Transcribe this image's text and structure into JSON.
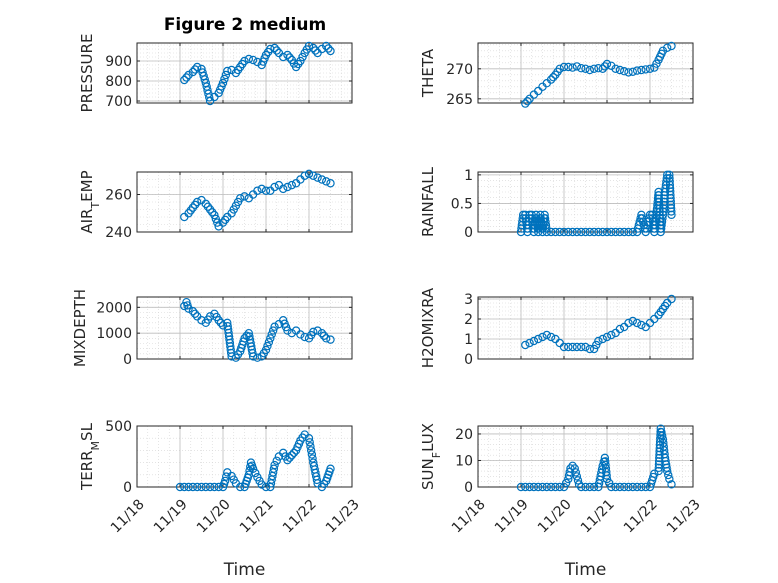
{
  "figure": {
    "title": "Figure 2 medium",
    "marker_color": "#0072BD",
    "x_ticks": [
      0,
      1,
      2,
      3,
      4,
      5
    ],
    "x_tick_labels": [
      "11/18",
      "11/19",
      "11/20",
      "11/21",
      "11/22",
      "11/23"
    ],
    "x_label": "Time"
  },
  "chart_data": [
    {
      "type": "scatter",
      "ylabel": "PRESSURE",
      "ylabel_sub": "",
      "ylabel_tail": "",
      "xlim": [
        0,
        5
      ],
      "ylim": [
        690,
        990
      ],
      "yticks": [
        700,
        800,
        900
      ],
      "grid": true,
      "show_x_tick_labels": false,
      "show_x_label": false,
      "x": [
        1.1,
        1.2,
        1.3,
        1.4,
        1.5,
        1.6,
        1.7,
        1.8,
        1.9,
        2.0,
        2.1,
        2.2,
        2.3,
        2.4,
        2.5,
        2.6,
        2.7,
        2.8,
        2.9,
        3.0,
        3.1,
        3.2,
        3.3,
        3.4,
        3.5,
        3.6,
        3.7,
        3.8,
        3.9,
        4.0,
        4.1,
        4.2,
        4.3,
        4.4,
        4.5
      ],
      "y": [
        805,
        830,
        845,
        870,
        860,
        790,
        700,
        720,
        740,
        790,
        850,
        855,
        840,
        870,
        900,
        910,
        905,
        895,
        880,
        930,
        960,
        965,
        940,
        920,
        930,
        905,
        870,
        900,
        940,
        975,
        965,
        940,
        960,
        975,
        950
      ]
    },
    {
      "type": "scatter",
      "ylabel": "THETA",
      "ylabel_sub": "",
      "ylabel_tail": "",
      "xlim": [
        0,
        5
      ],
      "ylim": [
        264.3,
        274.3
      ],
      "yticks": [
        265,
        270
      ],
      "grid": true,
      "show_x_tick_labels": false,
      "show_x_label": false,
      "x": [
        1.1,
        1.2,
        1.3,
        1.4,
        1.5,
        1.6,
        1.7,
        1.8,
        1.9,
        2.0,
        2.1,
        2.2,
        2.3,
        2.4,
        2.5,
        2.6,
        2.7,
        2.8,
        2.9,
        3.0,
        3.1,
        3.2,
        3.3,
        3.4,
        3.5,
        3.6,
        3.7,
        3.8,
        3.9,
        4.0,
        4.1,
        4.2,
        4.3,
        4.4,
        4.5
      ],
      "y": [
        264.2,
        265.0,
        265.7,
        266.3,
        267.0,
        267.6,
        268.2,
        269.0,
        270.0,
        270.3,
        270.3,
        270.2,
        270.4,
        270.1,
        270.0,
        269.8,
        270.0,
        270.1,
        270.0,
        270.8,
        270.5,
        270.0,
        269.8,
        269.6,
        269.4,
        269.5,
        269.7,
        269.8,
        269.9,
        270.0,
        270.2,
        271.5,
        273.0,
        273.5,
        273.8
      ]
    },
    {
      "type": "scatter",
      "ylabel": "AIR",
      "ylabel_sub": "T",
      "ylabel_tail": "EMP",
      "xlim": [
        0,
        5
      ],
      "ylim": [
        240,
        272
      ],
      "yticks": [
        240,
        260
      ],
      "grid": true,
      "show_x_tick_labels": false,
      "show_x_label": false,
      "x": [
        1.1,
        1.2,
        1.3,
        1.4,
        1.5,
        1.6,
        1.7,
        1.8,
        1.9,
        2.0,
        2.1,
        2.2,
        2.3,
        2.4,
        2.5,
        2.6,
        2.7,
        2.8,
        2.9,
        3.0,
        3.1,
        3.2,
        3.3,
        3.4,
        3.5,
        3.6,
        3.7,
        3.8,
        3.9,
        4.0,
        4.1,
        4.2,
        4.3,
        4.4,
        4.5
      ],
      "y": [
        248,
        250,
        253,
        256,
        257,
        255,
        252,
        249,
        243,
        245,
        248,
        250,
        254,
        258,
        259,
        258,
        260,
        262,
        263,
        262,
        262,
        264,
        265,
        263,
        264,
        265,
        266,
        268,
        270,
        271,
        270,
        269,
        268,
        267,
        266
      ]
    },
    {
      "type": "scatter",
      "ylabel": "RAINFALL",
      "ylabel_sub": "",
      "ylabel_tail": "",
      "xlim": [
        0,
        5
      ],
      "ylim": [
        0,
        1.05
      ],
      "yticks": [
        0,
        0.5,
        1
      ],
      "grid": true,
      "show_x_tick_labels": false,
      "show_x_label": false,
      "x": [
        1.0,
        1.05,
        1.1,
        1.15,
        1.2,
        1.25,
        1.3,
        1.35,
        1.4,
        1.45,
        1.5,
        1.55,
        1.6,
        1.7,
        1.8,
        1.9,
        2.0,
        2.1,
        2.2,
        2.3,
        2.4,
        2.5,
        2.6,
        2.7,
        2.8,
        2.9,
        3.0,
        3.1,
        3.2,
        3.3,
        3.4,
        3.5,
        3.6,
        3.7,
        3.8,
        3.9,
        4.0,
        4.05,
        4.1,
        4.15,
        4.2,
        4.25,
        4.3,
        4.35,
        4.4,
        4.45,
        4.5
      ],
      "y": [
        0,
        0.3,
        0.3,
        0,
        0.3,
        0.3,
        0,
        0.3,
        0,
        0.3,
        0,
        0.3,
        0,
        0,
        0,
        0,
        0,
        0,
        0,
        0,
        0,
        0,
        0,
        0,
        0,
        0,
        0,
        0,
        0,
        0,
        0,
        0,
        0,
        0,
        0.3,
        0,
        0.3,
        0.3,
        0,
        0.3,
        0.7,
        0,
        0.3,
        0.7,
        1.0,
        1.0,
        0.3
      ]
    },
    {
      "type": "scatter",
      "ylabel": "MIXDEPTH",
      "ylabel_sub": "",
      "ylabel_tail": "",
      "xlim": [
        0,
        5
      ],
      "ylim": [
        0,
        2400
      ],
      "yticks": [
        0,
        1000,
        2000
      ],
      "grid": true,
      "show_x_tick_labels": false,
      "show_x_label": false,
      "x": [
        1.1,
        1.15,
        1.2,
        1.3,
        1.4,
        1.5,
        1.6,
        1.7,
        1.8,
        1.9,
        2.0,
        2.1,
        2.2,
        2.3,
        2.4,
        2.5,
        2.6,
        2.7,
        2.8,
        2.9,
        3.0,
        3.1,
        3.2,
        3.3,
        3.4,
        3.5,
        3.6,
        3.7,
        3.8,
        3.9,
        4.0,
        4.1,
        4.2,
        4.3,
        4.4,
        4.5
      ],
      "y": [
        2050,
        2200,
        1950,
        1850,
        1650,
        1500,
        1400,
        1650,
        1750,
        1500,
        1300,
        1400,
        100,
        50,
        300,
        800,
        1000,
        100,
        50,
        100,
        350,
        800,
        1250,
        1350,
        1500,
        1100,
        1000,
        1100,
        950,
        850,
        800,
        1050,
        1100,
        1000,
        800,
        750
      ]
    },
    {
      "type": "scatter",
      "ylabel": "H2OMIXRA",
      "ylabel_sub": "",
      "ylabel_tail": "",
      "xlim": [
        0,
        5
      ],
      "ylim": [
        0,
        3.1
      ],
      "yticks": [
        0,
        1,
        2,
        3
      ],
      "grid": true,
      "show_x_tick_labels": false,
      "show_x_label": false,
      "x": [
        1.1,
        1.2,
        1.3,
        1.4,
        1.5,
        1.6,
        1.7,
        1.8,
        1.9,
        2.0,
        2.1,
        2.2,
        2.3,
        2.4,
        2.5,
        2.6,
        2.7,
        2.8,
        2.9,
        3.0,
        3.1,
        3.2,
        3.3,
        3.4,
        3.5,
        3.6,
        3.7,
        3.8,
        3.9,
        4.0,
        4.1,
        4.2,
        4.3,
        4.4,
        4.5
      ],
      "y": [
        0.7,
        0.8,
        0.9,
        1.0,
        1.1,
        1.2,
        1.1,
        1.0,
        0.8,
        0.6,
        0.6,
        0.6,
        0.6,
        0.6,
        0.6,
        0.5,
        0.5,
        0.9,
        1.0,
        1.1,
        1.2,
        1.3,
        1.5,
        1.6,
        1.8,
        1.9,
        1.8,
        1.7,
        1.6,
        1.8,
        2.0,
        2.2,
        2.5,
        2.8,
        3.0
      ]
    },
    {
      "type": "scatter",
      "ylabel": "TERR",
      "ylabel_sub": "M",
      "ylabel_tail": "SL",
      "xlim": [
        0,
        5
      ],
      "ylim": [
        0,
        500
      ],
      "yticks": [
        0,
        500
      ],
      "grid": true,
      "show_x_tick_labels": true,
      "show_x_label": true,
      "x": [
        1.0,
        1.1,
        1.2,
        1.3,
        1.4,
        1.5,
        1.6,
        1.7,
        1.8,
        1.9,
        2.0,
        2.05,
        2.1,
        2.2,
        2.3,
        2.4,
        2.5,
        2.6,
        2.65,
        2.7,
        2.8,
        2.9,
        3.0,
        3.1,
        3.2,
        3.3,
        3.4,
        3.5,
        3.6,
        3.7,
        3.8,
        3.9,
        4.0,
        4.05,
        4.1,
        4.2,
        4.3,
        4.4,
        4.5
      ],
      "y": [
        0,
        0,
        0,
        0,
        0,
        0,
        0,
        0,
        0,
        0,
        0,
        50,
        120,
        90,
        30,
        0,
        0,
        100,
        200,
        150,
        80,
        20,
        0,
        0,
        180,
        250,
        280,
        220,
        260,
        300,
        380,
        430,
        400,
        300,
        200,
        30,
        0,
        50,
        150
      ]
    },
    {
      "type": "scatter",
      "ylabel": "SUN",
      "ylabel_sub": "F",
      "ylabel_tail": "LUX",
      "xlim": [
        0,
        5
      ],
      "ylim": [
        0,
        23
      ],
      "yticks": [
        0,
        10,
        20
      ],
      "grid": true,
      "show_x_tick_labels": true,
      "show_x_label": true,
      "x": [
        1.0,
        1.1,
        1.2,
        1.3,
        1.4,
        1.5,
        1.6,
        1.7,
        1.8,
        1.9,
        2.0,
        2.1,
        2.15,
        2.2,
        2.25,
        2.3,
        2.35,
        2.4,
        2.5,
        2.6,
        2.7,
        2.8,
        2.85,
        2.9,
        2.95,
        3.0,
        3.1,
        3.2,
        3.3,
        3.4,
        3.5,
        3.6,
        3.7,
        3.8,
        3.9,
        4.0,
        4.1,
        4.2,
        4.25,
        4.3,
        4.35,
        4.4,
        4.45,
        4.5
      ],
      "y": [
        0,
        0,
        0,
        0,
        0,
        0,
        0,
        0,
        0,
        0,
        0,
        3,
        7,
        8,
        7,
        4,
        1,
        0,
        0,
        0,
        0,
        0,
        4,
        8,
        11,
        3,
        0,
        0,
        0,
        0,
        0,
        0,
        0,
        0,
        0,
        0,
        5,
        6,
        22,
        18,
        11,
        6,
        3,
        1
      ]
    }
  ]
}
